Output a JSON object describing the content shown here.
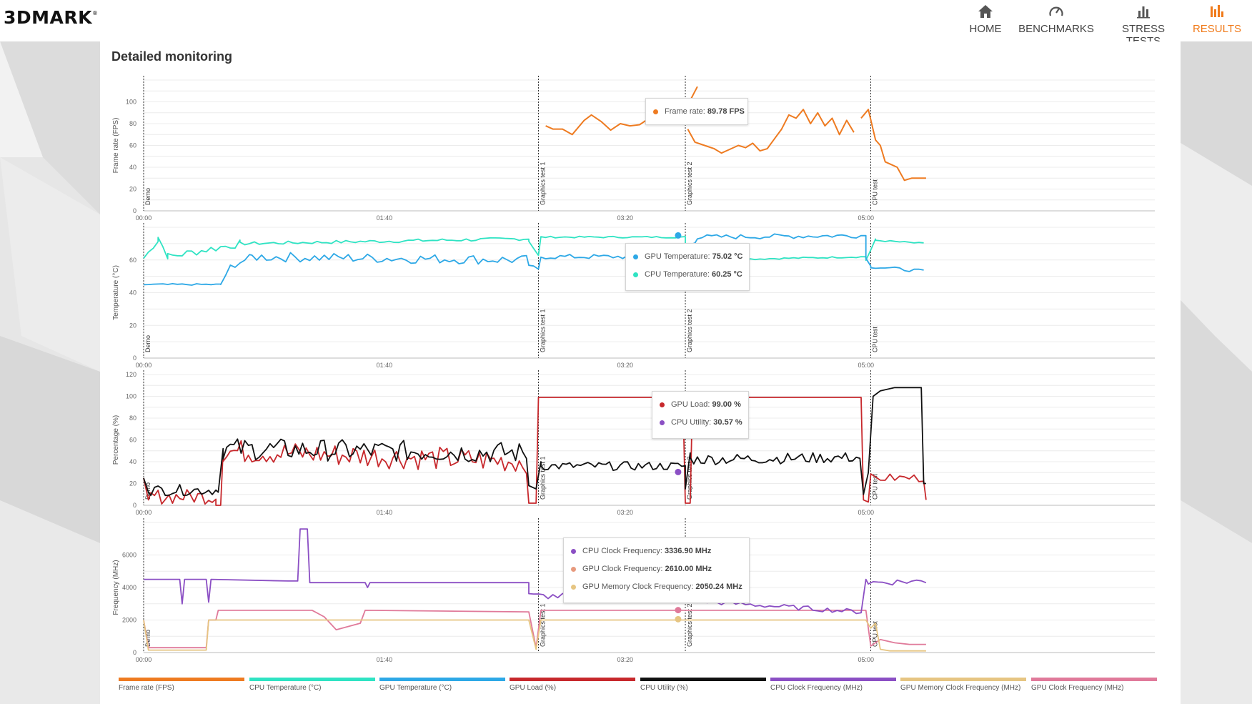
{
  "app": {
    "logo": "3DMARK",
    "logo_mark": "®"
  },
  "nav": [
    {
      "label": "HOME",
      "icon": "home-icon",
      "active": false
    },
    {
      "label": "BENCHMARKS",
      "icon": "gauge-icon",
      "active": false
    },
    {
      "label": "STRESS TESTS",
      "icon": "bar-chart-icon",
      "active": false
    },
    {
      "label": "RESULTS",
      "icon": "results-icon",
      "active": true
    }
  ],
  "page": {
    "title": "Detailed monitoring"
  },
  "colors": {
    "accent": "#f07a1a",
    "frame_rate": "#ee7b21",
    "cpu_temp": "#2fe3c3",
    "gpu_temp": "#2da8e6",
    "gpu_load": "#c7282c",
    "cpu_util": "#111111",
    "cpu_clock": "#8b4fc4",
    "gpu_mem_clock": "#e6c582",
    "gpu_clock": "#e07a9a"
  },
  "x_ticks": [
    "00:00",
    "01:40",
    "03:20",
    "05:00"
  ],
  "x_range_seconds": [
    0,
    420
  ],
  "test_markers": [
    {
      "label": "Demo",
      "t": 0
    },
    {
      "label": "Graphics test 1",
      "t": 164
    },
    {
      "label": "Graphics test 2",
      "t": 225
    },
    {
      "label": "CPU test",
      "t": 302
    }
  ],
  "charts": [
    {
      "ylabel": "Frame rate (FPS)",
      "y_ticks": [
        "0",
        "20",
        "40",
        "60",
        "80",
        "100"
      ],
      "ylim": [
        0,
        120
      ],
      "series": [
        {
          "name": "Frame rate (FPS)",
          "color": "#ee7b21",
          "points": [
            [
              167,
              78
            ],
            [
              170,
              75
            ],
            [
              174,
              75
            ],
            [
              178,
              70
            ],
            [
              183,
              83
            ],
            [
              186,
              88
            ],
            [
              190,
              82
            ],
            [
              194,
              74
            ],
            [
              198,
              80
            ],
            [
              202,
              78
            ],
            [
              206,
              79
            ],
            [
              210,
              85
            ],
            [
              214,
              80
            ],
            [
              218,
              84
            ],
            [
              222,
              92
            ],
            [
              224,
              90
            ],
            [
              226,
              97
            ],
            [
              230,
              114
            ],
            [
              226,
              75
            ],
            [
              229,
              63
            ],
            [
              233,
              60
            ],
            [
              237,
              57
            ],
            [
              240,
              53
            ],
            [
              244,
              57
            ],
            [
              247,
              60
            ],
            [
              250,
              58
            ],
            [
              253,
              62
            ],
            [
              256,
              55
            ],
            [
              259,
              57
            ],
            [
              262,
              66
            ],
            [
              265,
              75
            ],
            [
              268,
              88
            ],
            [
              271,
              85
            ],
            [
              274,
              93
            ],
            [
              277,
              80
            ],
            [
              280,
              90
            ],
            [
              283,
              78
            ],
            [
              286,
              85
            ],
            [
              289,
              70
            ],
            [
              292,
              83
            ],
            [
              295,
              72
            ],
            [
              298,
              85
            ],
            [
              301,
              93
            ],
            [
              304,
              65
            ],
            [
              306,
              60
            ],
            [
              308,
              45
            ],
            [
              310,
              43
            ],
            [
              313,
              40
            ],
            [
              316,
              28
            ],
            [
              319,
              30
            ],
            [
              325,
              30
            ]
          ],
          "breaks": [
            18,
            41
          ]
        }
      ],
      "marker": {
        "t": 222,
        "v": 89.78
      }
    },
    {
      "ylabel": "Temperature (°C)",
      "y_ticks": [
        "0",
        "20",
        "40",
        "60"
      ],
      "ylim": [
        0,
        80
      ],
      "series": [
        {
          "name": "CPU Temperature (°C)",
          "color": "#2fe3c3"
        },
        {
          "name": "GPU Temperature (°C)",
          "color": "#2da8e6"
        }
      ],
      "markers": [
        {
          "t": 222,
          "v": 75.02,
          "color": "#2da8e6"
        },
        {
          "t": 222,
          "v": 60.25,
          "color": "#2fe3c3"
        }
      ]
    },
    {
      "ylabel": "Percentage (%)",
      "y_ticks": [
        "0",
        "20",
        "40",
        "60",
        "80",
        "100",
        "120"
      ],
      "ylim": [
        0,
        120
      ],
      "series": [
        {
          "name": "GPU Load (%)",
          "color": "#c7282c"
        },
        {
          "name": "CPU Utility (%)",
          "color": "#111111"
        }
      ],
      "markers": [
        {
          "t": 222,
          "v": 99,
          "color": "#c7282c"
        },
        {
          "t": 222,
          "v": 30.57,
          "color": "#8b4fc4"
        }
      ]
    },
    {
      "ylabel": "Frequency (MHz)",
      "y_ticks": [
        "0",
        "2000",
        "4000",
        "6000"
      ],
      "ylim": [
        0,
        8000
      ],
      "series": [
        {
          "name": "CPU Clock Frequency (MHz)",
          "color": "#8b4fc4"
        },
        {
          "name": "GPU Clock Frequency (MHz)",
          "color": "#e07a9a"
        },
        {
          "name": "GPU Memory Clock Frequency (MHz)",
          "color": "#e6c582"
        }
      ],
      "markers": [
        {
          "t": 222,
          "v": 3336.9,
          "color": "#8b4fc4"
        },
        {
          "t": 222,
          "v": 2610,
          "color": "#e07a9a"
        },
        {
          "t": 222,
          "v": 2050.24,
          "color": "#e6c582"
        }
      ]
    }
  ],
  "tooltips": {
    "fps": [
      {
        "label": "Frame rate:",
        "value": "89.78 FPS",
        "color": "#ee7b21"
      }
    ],
    "temp": [
      {
        "label": "GPU Temperature:",
        "value": "75.02 °C",
        "color": "#2da8e6"
      },
      {
        "label": "CPU Temperature:",
        "value": "60.25 °C",
        "color": "#2fe3c3"
      }
    ],
    "pct": [
      {
        "label": "GPU Load:",
        "value": "99.00 %",
        "color": "#c7282c"
      },
      {
        "label": "CPU Utility:",
        "value": "30.57 %",
        "color": "#8b4fc4"
      }
    ],
    "freq": [
      {
        "label": "CPU Clock Frequency:",
        "value": "3336.90 MHz",
        "color": "#8b4fc4"
      },
      {
        "label": "GPU Clock Frequency:",
        "value": "2610.00 MHz",
        "color": "#e79a7e"
      },
      {
        "label": "GPU Memory Clock Frequency:",
        "value": "2050.24 MHz",
        "color": "#e6c582"
      }
    ]
  },
  "legend": [
    {
      "label": "Frame rate (FPS)",
      "color": "#ee7b21"
    },
    {
      "label": "CPU Temperature (°C)",
      "color": "#2fe3c3"
    },
    {
      "label": "GPU Temperature (°C)",
      "color": "#2da8e6"
    },
    {
      "label": "GPU Load (%)",
      "color": "#c7282c"
    },
    {
      "label": "CPU Utility (%)",
      "color": "#111111"
    },
    {
      "label": "CPU Clock Frequency (MHz)",
      "color": "#8b4fc4"
    },
    {
      "label": "GPU Memory Clock Frequency (MHz)",
      "color": "#e6c582"
    },
    {
      "label": "GPU Clock Frequency (MHz)",
      "color": "#e07a9a"
    }
  ]
}
